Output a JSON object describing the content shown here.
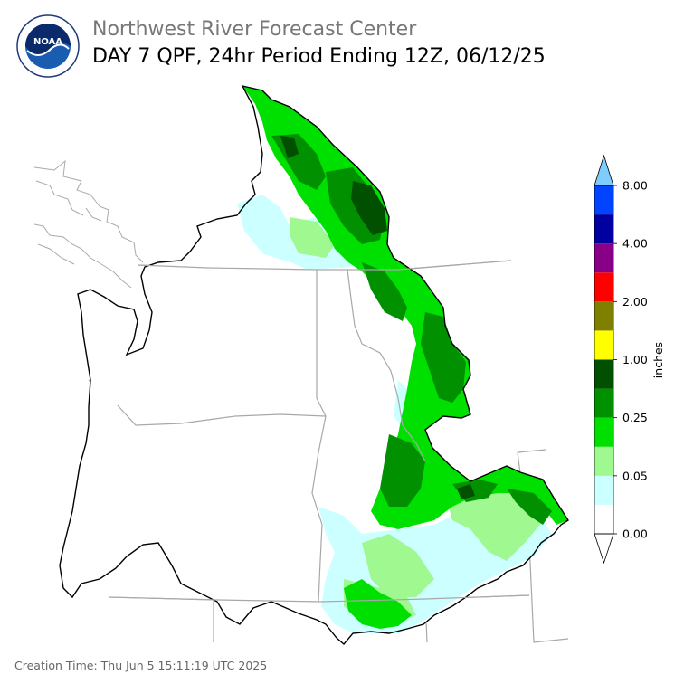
{
  "header": {
    "agency": "Northwest River Forecast Center",
    "product": "DAY 7 QPF, 24hr Period Ending 12Z, 06/12/25"
  },
  "logo": {
    "text": "NOAA",
    "ring_text": "NATIONAL OCEANIC AND ATMOSPHERIC ADMINISTRATION · U.S. DEPARTMENT OF COMMERCE"
  },
  "map": {
    "region": "Pacific Northwest river basins",
    "colors": {
      "ocean_coast": "#000000",
      "state_borders": "#a0a0a0",
      "basin_outline": "#000000"
    }
  },
  "legend": {
    "unit_label": "inches",
    "tick_labels": [
      "0.00",
      "0.05",
      "0.25",
      "1.00",
      "2.00",
      "4.00",
      "8.00"
    ],
    "bins": [
      {
        "color": "#ffffff"
      },
      {
        "color": "#ccffff"
      },
      {
        "color": "#a0f890"
      },
      {
        "color": "#00e000"
      },
      {
        "color": "#009000"
      },
      {
        "color": "#005000"
      },
      {
        "color": "#ffff00"
      },
      {
        "color": "#808000"
      },
      {
        "color": "#ff0000"
      },
      {
        "color": "#880088"
      },
      {
        "color": "#0000a0"
      },
      {
        "color": "#0044ff"
      }
    ],
    "over_color": "#80ccff",
    "under_color": "#ffffff"
  },
  "footer": {
    "creation_time": "Creation Time: Thu Jun 5 15:11:19 UTC 2025"
  }
}
